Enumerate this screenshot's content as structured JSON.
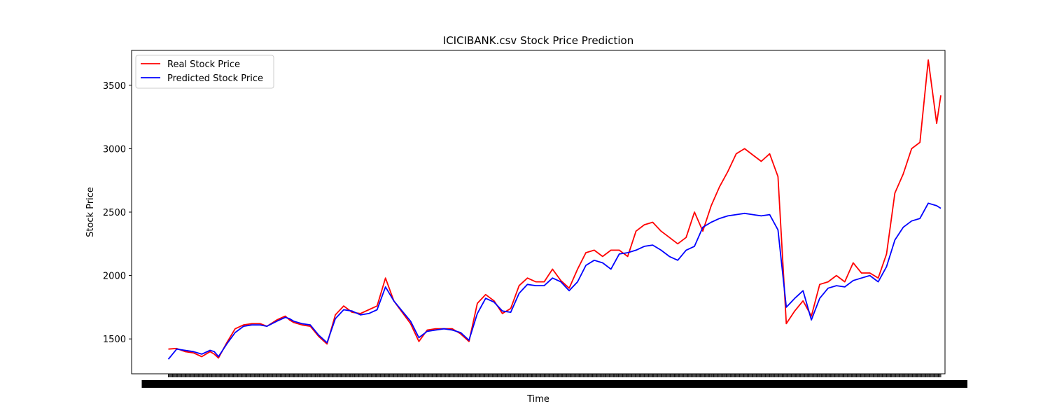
{
  "chart_data": {
    "type": "line",
    "title": "ICICIBANK.csv Stock Price Prediction",
    "xlabel": "Time",
    "ylabel": "Stock Price",
    "ylim": [
      1225,
      3775
    ],
    "yticks": [
      1500,
      2000,
      2500,
      3000,
      3500
    ],
    "xlim": [
      -44,
      930
    ],
    "grid": false,
    "legend_position": "top-left",
    "series": [
      {
        "name": "Real Stock Price",
        "color": "#ff0000",
        "x": [
          0,
          10,
          20,
          30,
          40,
          50,
          55,
          60,
          70,
          80,
          90,
          100,
          110,
          118,
          130,
          140,
          145,
          150,
          160,
          170,
          180,
          190,
          200,
          210,
          220,
          230,
          240,
          250,
          260,
          270,
          280,
          290,
          300,
          310,
          320,
          330,
          340,
          350,
          360,
          370,
          380,
          390,
          400,
          410,
          420,
          430,
          440,
          450,
          460,
          470,
          480,
          490,
          500,
          510,
          520,
          530,
          540,
          550,
          560,
          570,
          580,
          590,
          600,
          610,
          620,
          630,
          640,
          650,
          660,
          670,
          680,
          690,
          700,
          710,
          720,
          730,
          740,
          750,
          760,
          770,
          780,
          790,
          800,
          810,
          820,
          830,
          840,
          850,
          860,
          870,
          880,
          890,
          900,
          910,
          920,
          925
        ],
        "values": [
          1420,
          1425,
          1400,
          1390,
          1360,
          1400,
          1380,
          1350,
          1470,
          1580,
          1610,
          1620,
          1620,
          1600,
          1650,
          1680,
          1650,
          1630,
          1610,
          1600,
          1520,
          1460,
          1690,
          1760,
          1710,
          1700,
          1730,
          1760,
          1980,
          1800,
          1710,
          1620,
          1480,
          1570,
          1580,
          1580,
          1580,
          1540,
          1480,
          1780,
          1850,
          1800,
          1700,
          1740,
          1920,
          1980,
          1950,
          1950,
          2050,
          1960,
          1900,
          2050,
          2180,
          2200,
          2150,
          2200,
          2200,
          2150,
          2350,
          2400,
          2420,
          2350,
          2300,
          2250,
          2300,
          2500,
          2350,
          2550,
          2700,
          2820,
          2960,
          3000,
          2950,
          2900,
          2960,
          2780,
          1620,
          1720,
          1800,
          1680,
          1930,
          1950,
          2000,
          1950,
          2100,
          2020,
          2020,
          1980,
          2170,
          2650,
          2800,
          3000,
          3050,
          3700,
          3200,
          3420
        ]
      },
      {
        "name": "Predicted Stock Price",
        "color": "#0000ff",
        "x": [
          0,
          10,
          20,
          30,
          40,
          50,
          55,
          60,
          70,
          80,
          90,
          100,
          110,
          118,
          130,
          140,
          145,
          150,
          160,
          170,
          180,
          190,
          200,
          210,
          220,
          230,
          240,
          250,
          260,
          270,
          280,
          290,
          300,
          310,
          320,
          330,
          340,
          350,
          360,
          370,
          380,
          390,
          400,
          410,
          420,
          430,
          440,
          450,
          460,
          470,
          480,
          490,
          500,
          510,
          520,
          530,
          540,
          550,
          560,
          570,
          580,
          590,
          600,
          610,
          620,
          630,
          640,
          650,
          660,
          670,
          680,
          690,
          700,
          710,
          720,
          730,
          740,
          750,
          760,
          770,
          780,
          790,
          800,
          810,
          820,
          830,
          840,
          850,
          860,
          870,
          880,
          890,
          900,
          910,
          920,
          925
        ],
        "values": [
          1340,
          1420,
          1410,
          1400,
          1380,
          1410,
          1400,
          1360,
          1460,
          1550,
          1600,
          1610,
          1610,
          1600,
          1640,
          1670,
          1660,
          1640,
          1620,
          1610,
          1530,
          1470,
          1660,
          1730,
          1720,
          1690,
          1700,
          1730,
          1910,
          1800,
          1720,
          1640,
          1510,
          1560,
          1570,
          1580,
          1570,
          1550,
          1490,
          1700,
          1820,
          1790,
          1720,
          1710,
          1860,
          1930,
          1920,
          1920,
          1980,
          1950,
          1880,
          1950,
          2080,
          2120,
          2100,
          2050,
          2170,
          2180,
          2200,
          2230,
          2240,
          2200,
          2150,
          2120,
          2200,
          2230,
          2380,
          2420,
          2450,
          2470,
          2480,
          2490,
          2480,
          2470,
          2480,
          2360,
          1750,
          1820,
          1880,
          1650,
          1820,
          1900,
          1920,
          1910,
          1960,
          1980,
          2000,
          1950,
          2070,
          2280,
          2380,
          2430,
          2450,
          2570,
          2550,
          2530
        ]
      }
    ]
  }
}
